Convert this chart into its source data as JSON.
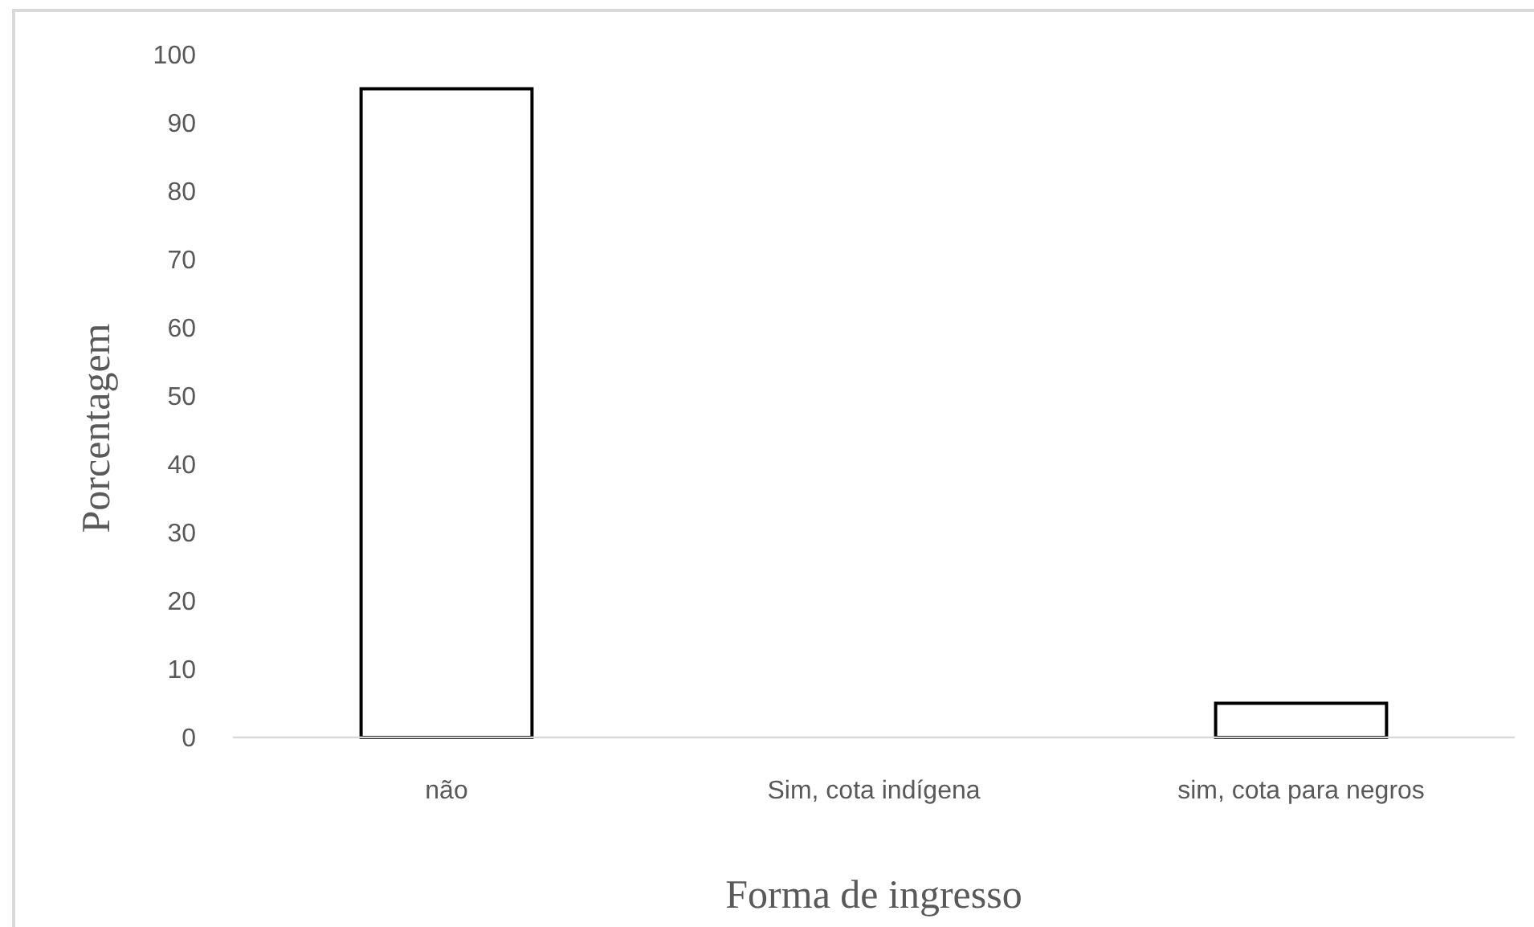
{
  "chart_data": {
    "type": "bar",
    "xlabel": "Forma de ingresso",
    "ylabel": "Porcentagem",
    "categories": [
      "não",
      "Sim, cota indígena",
      "sim, cota para negros"
    ],
    "values": [
      95,
      0,
      5
    ],
    "color": "#ffffff",
    "ylim": [
      0,
      100
    ],
    "yticks": [
      0,
      10,
      20,
      30,
      40,
      50,
      60,
      70,
      80,
      90,
      100
    ]
  }
}
